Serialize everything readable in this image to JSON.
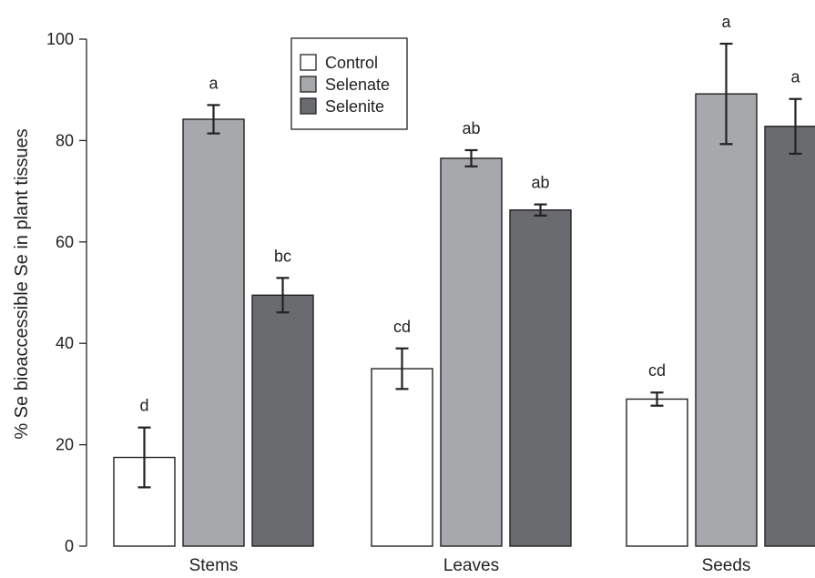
{
  "chart_data": {
    "type": "bar",
    "title": "",
    "xlabel": "",
    "ylabel": "% Se bioaccessible Se in plant tissues",
    "ylim": [
      0,
      100
    ],
    "yticks": [
      0,
      20,
      40,
      60,
      80,
      100
    ],
    "categories": [
      "Stems",
      "Leaves",
      "Seeds"
    ],
    "grid": false,
    "legend_position": "top-center",
    "series": [
      {
        "name": "Control",
        "color": "#ffffff",
        "values": [
          17.5,
          35,
          29
        ],
        "errors": [
          5.9,
          4.0,
          1.3
        ],
        "labels": [
          "d",
          "cd",
          "cd"
        ]
      },
      {
        "name": "Selenate",
        "color": "#a7a8ab",
        "values": [
          84.2,
          76.5,
          89.2
        ],
        "errors": [
          2.8,
          1.6,
          9.9
        ],
        "labels": [
          "a",
          "ab",
          "a"
        ]
      },
      {
        "name": "Selenite",
        "color": "#6a6b6f",
        "values": [
          49.5,
          66.3,
          82.8
        ],
        "errors": [
          3.4,
          1.1,
          5.4
        ],
        "labels": [
          "bc",
          "ab",
          "a"
        ]
      }
    ]
  }
}
